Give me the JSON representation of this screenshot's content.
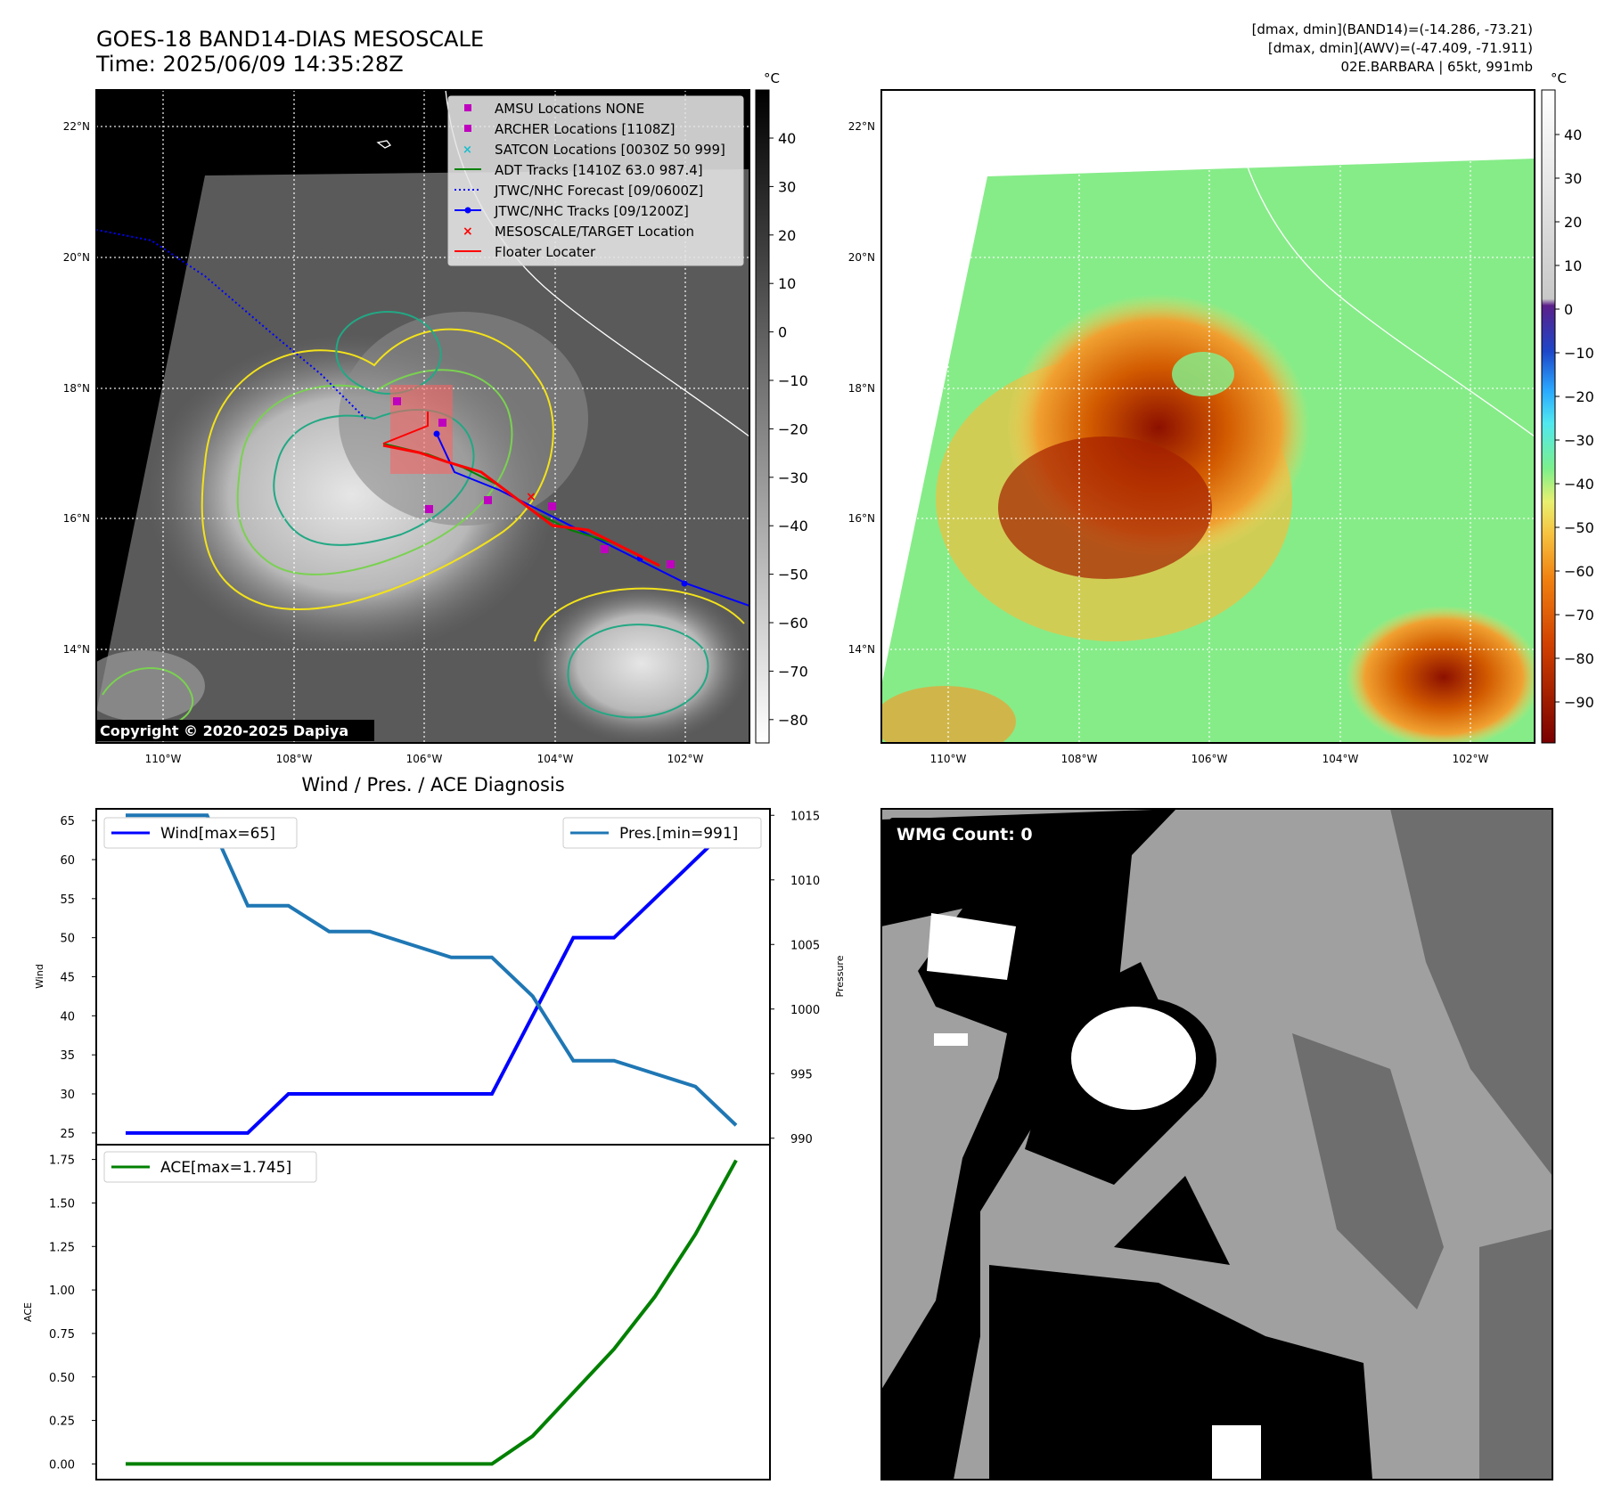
{
  "header": {
    "title_line1": "GOES-18 BAND14-DIAS MESOSCALE",
    "title_line2": "Time: 2025/06/09 14:35:28Z",
    "info_line1": "[dmax, dmin](BAND14)=(-14.286, -73.21)",
    "info_line2": "[dmax, dmin](AWV)=(-47.409, -71.911)",
    "info_line3": "02E.BARBARA | 65kt, 991mb"
  },
  "map_panel": {
    "lat_labels": [
      "22°N",
      "20°N",
      "18°N",
      "16°N",
      "14°N"
    ],
    "lon_labels": [
      "110°W",
      "108°W",
      "106°W",
      "104°W",
      "102°W"
    ],
    "copyright": "Copyright © 2020-2025 Dapiya",
    "legend": [
      {
        "label": "AMSU Locations NONE",
        "marker": "square",
        "color": "#bf00bf"
      },
      {
        "label": "ARCHER Locations [1108Z]",
        "marker": "square",
        "color": "#bf00bf"
      },
      {
        "label": "SATCON Locations [0030Z 50 999]",
        "marker": "x",
        "color": "#17becf"
      },
      {
        "label": "ADT Tracks [1410Z 63.0 987.4]",
        "marker": "line",
        "color": "#008000"
      },
      {
        "label": "JTWC/NHC Forecast [09/0600Z]",
        "marker": "dotted",
        "color": "#0000ff"
      },
      {
        "label": "JTWC/NHC Tracks [09/1200Z]",
        "marker": "line-dot",
        "color": "#0000ff"
      },
      {
        "label": "MESOSCALE/TARGET Location",
        "marker": "x",
        "color": "#ff0000"
      },
      {
        "label": "Floater Locater",
        "marker": "line",
        "color": "#ff0000"
      }
    ],
    "gray_colorbar": {
      "unit": "°C",
      "ticks": [
        "40",
        "30",
        "20",
        "10",
        "0",
        "−10",
        "−20",
        "−30",
        "−40",
        "−50",
        "−60",
        "−70",
        "−80"
      ]
    }
  },
  "color_panel": {
    "lat_labels": [
      "22°N",
      "20°N",
      "18°N",
      "16°N",
      "14°N"
    ],
    "lon_labels": [
      "110°W",
      "108°W",
      "106°W",
      "104°W",
      "102°W"
    ],
    "colorbar": {
      "unit": "°C",
      "ticks": [
        "40",
        "30",
        "20",
        "10",
        "0",
        "−10",
        "−20",
        "−30",
        "−40",
        "−50",
        "−60",
        "−70",
        "−80",
        "−90"
      ]
    }
  },
  "wmg_panel": {
    "label": "WMG Count: 0"
  },
  "chart_data": [
    {
      "type": "line",
      "title": "Wind / Pres. / ACE Diagnosis",
      "ylabel": "Wind",
      "ylabel_right": "Pressure",
      "ylim": [
        23.5,
        66.5
      ],
      "ylim_right": [
        989.5,
        1015.5
      ],
      "yticks": [
        25,
        30,
        35,
        40,
        45,
        50,
        55,
        60,
        65
      ],
      "yticks_right": [
        990,
        995,
        1000,
        1005,
        1010,
        1015
      ],
      "x": [
        0,
        1,
        2,
        3,
        4,
        5,
        6,
        7,
        8,
        9,
        10,
        11,
        12,
        13,
        14,
        15
      ],
      "series": [
        {
          "name": "Wind[max=65]",
          "axis": "left",
          "color": "#0000ff",
          "values": [
            25,
            25,
            25,
            25,
            30,
            30,
            30,
            30,
            30,
            30,
            40,
            50,
            50,
            55,
            60,
            65
          ]
        },
        {
          "name": "Pres.[min=991]",
          "axis": "right",
          "color": "#1f77b4",
          "values": [
            1015,
            1015,
            1015,
            1008,
            1008,
            1006,
            1006,
            1005,
            1004,
            1004,
            1001,
            996,
            996,
            995,
            994,
            991
          ]
        }
      ]
    },
    {
      "type": "line",
      "ylabel": "ACE",
      "ylim": [
        -0.09,
        1.835
      ],
      "yticks": [
        "0.00",
        "0.25",
        "0.50",
        "0.75",
        "1.00",
        "1.25",
        "1.50",
        "1.75"
      ],
      "x": [
        0,
        1,
        2,
        3,
        4,
        5,
        6,
        7,
        8,
        9,
        10,
        11,
        12,
        13,
        14,
        15
      ],
      "series": [
        {
          "name": "ACE[max=1.745]",
          "color": "#008000",
          "values": [
            0,
            0,
            0,
            0,
            0,
            0,
            0,
            0,
            0,
            0,
            0.16,
            0.41,
            0.66,
            0.96,
            1.32,
            1.745
          ]
        }
      ]
    }
  ]
}
